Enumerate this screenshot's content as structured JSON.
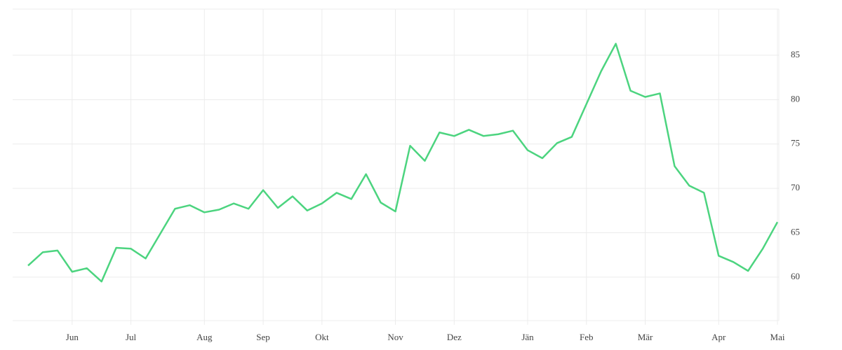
{
  "chart_data": {
    "type": "line",
    "categories": [
      null,
      null,
      null,
      "Jun",
      null,
      null,
      null,
      "Jul",
      null,
      null,
      null,
      null,
      "Aug",
      null,
      null,
      null,
      "Sep",
      null,
      null,
      null,
      "Okt",
      null,
      null,
      null,
      null,
      "Nov",
      null,
      null,
      null,
      "Dez",
      null,
      null,
      null,
      null,
      "Jän",
      null,
      null,
      null,
      "Feb",
      null,
      null,
      null,
      "Mär",
      null,
      null,
      null,
      null,
      "Apr",
      null,
      null,
      null,
      "Mai"
    ],
    "series": [
      {
        "color": "#4cd47f",
        "values": [
          61.3,
          62.8,
          63.0,
          60.6,
          61.0,
          59.5,
          63.3,
          63.2,
          62.1,
          64.9,
          67.7,
          68.1,
          67.3,
          67.6,
          68.3,
          67.7,
          69.8,
          67.8,
          69.1,
          67.5,
          68.3,
          69.5,
          68.8,
          71.6,
          68.4,
          67.4,
          74.8,
          73.1,
          76.3,
          75.9,
          76.6,
          75.9,
          76.1,
          76.5,
          74.3,
          73.4,
          75.1,
          75.8,
          79.5,
          83.2,
          86.3,
          81.0,
          80.3,
          80.7,
          72.5,
          70.3,
          69.5,
          62.4,
          61.7,
          60.7,
          63.2,
          66.2
        ]
      }
    ],
    "ylim": [
      55.1,
      90.2
    ],
    "yticks": [
      60,
      65,
      70,
      75,
      80,
      85
    ],
    "grid": true
  }
}
